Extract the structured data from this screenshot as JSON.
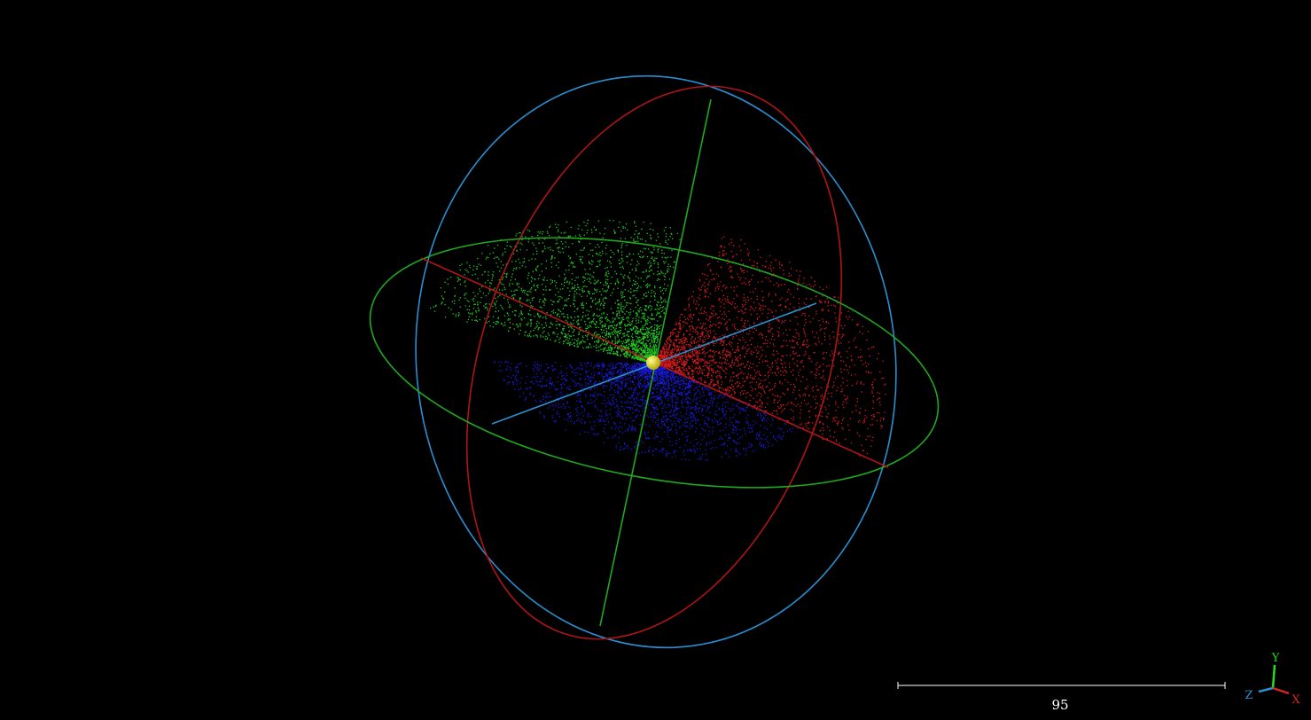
{
  "scale_bar": {
    "label": "95"
  },
  "axes": {
    "x": "X",
    "y": "Y",
    "z": "Z"
  }
}
